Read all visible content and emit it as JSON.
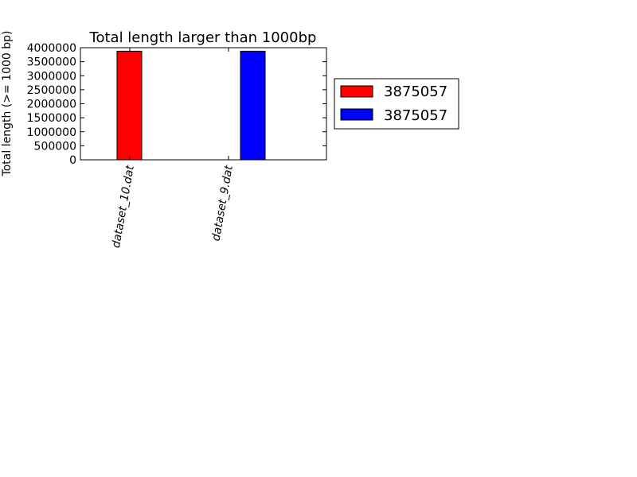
{
  "chart_data": {
    "type": "bar",
    "title": "Total length larger than 1000bp",
    "xlabel": "",
    "ylabel": "Total length (>= 1000 bp)",
    "categories": [
      "dataset_10.dat",
      "dataset_9.dat"
    ],
    "series": [
      {
        "name": "3875057",
        "values": [
          3875057,
          0
        ],
        "color": "#ff0000"
      },
      {
        "name": "3875057",
        "values": [
          0,
          3875057
        ],
        "color": "#0000ff"
      }
    ],
    "ylim": [
      0,
      4000000
    ],
    "yticks": [
      "0",
      "500000",
      "1000000",
      "1500000",
      "2000000",
      "2500000",
      "3000000",
      "3500000",
      "4000000"
    ],
    "grid": false,
    "legend_position": "outside-right"
  }
}
